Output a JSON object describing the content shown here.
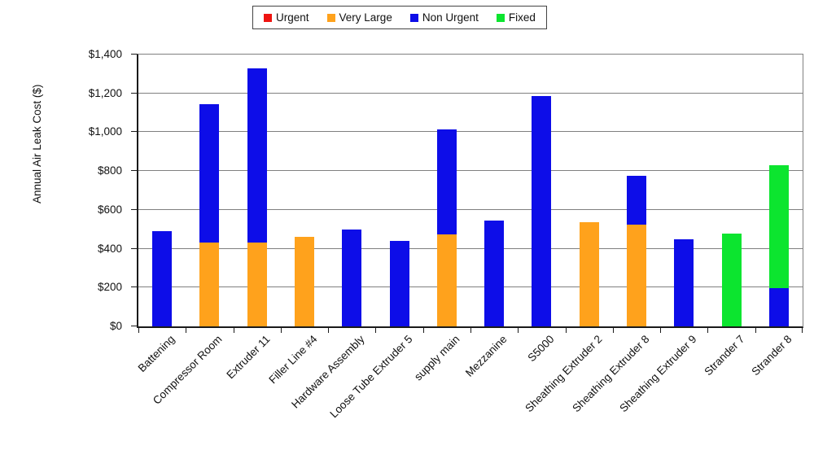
{
  "chart_data": {
    "type": "bar",
    "stacked": true,
    "title": "",
    "xlabel": "",
    "ylabel": "Annual Air Leak Cost ($)",
    "ylim": [
      0,
      1400
    ],
    "ytick_interval": 200,
    "ytick_labels": [
      "$0",
      "$200",
      "$400",
      "$600",
      "$800",
      "$1,000",
      "$1,200",
      "$1,400"
    ],
    "grid": "horizontal",
    "legend_position": "top-center",
    "categories": [
      "Battening",
      "Compressor Room",
      "Extruder 11",
      "Filler Line #4",
      "Hardware Assembly",
      "Loose Tube Extruder 5",
      "supply main",
      "Mezzanine",
      "S5000",
      "Sheathing Extruder 2",
      "Sheathing Extruder 8",
      "Sheathing Extruder 9",
      "Strander 7",
      "Strander 8"
    ],
    "series": [
      {
        "name": "Urgent",
        "color": "#ee1410",
        "values": [
          0,
          0,
          0,
          0,
          0,
          0,
          0,
          0,
          0,
          0,
          0,
          0,
          0,
          0
        ]
      },
      {
        "name": "Very Large",
        "color": "#ffa21c",
        "values": [
          0,
          430,
          430,
          460,
          0,
          0,
          475,
          0,
          0,
          535,
          525,
          0,
          0,
          0
        ]
      },
      {
        "name": "Non Urgent",
        "color": "#0d0de8",
        "values": [
          490,
          715,
          900,
          0,
          500,
          440,
          540,
          545,
          1185,
          0,
          250,
          450,
          0,
          195
        ]
      },
      {
        "name": "Fixed",
        "color": "#0ce52f",
        "values": [
          0,
          0,
          0,
          0,
          0,
          0,
          0,
          0,
          0,
          0,
          0,
          0,
          480,
          635
        ]
      }
    ],
    "totals": [
      490,
      1145,
      1330,
      460,
      500,
      440,
      1015,
      545,
      1185,
      535,
      775,
      450,
      480,
      830
    ]
  }
}
